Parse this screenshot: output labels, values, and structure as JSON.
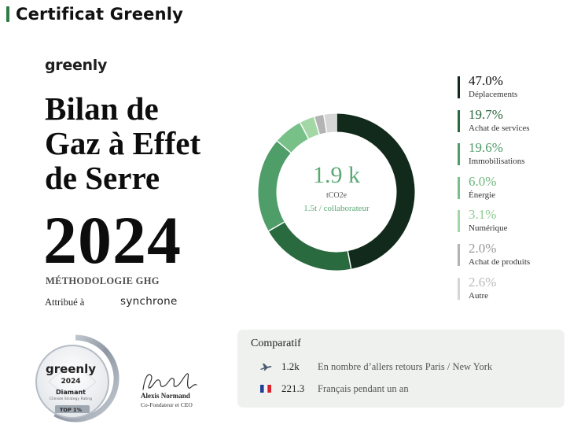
{
  "header": {
    "title": "Certificat Greenly"
  },
  "brand": {
    "logo": "greenly"
  },
  "report": {
    "title_lines": [
      "Bilan de",
      "Gaz à Effet",
      "de Serre"
    ],
    "year": "2024",
    "methodology": "MÉTHODOLOGIE GHG",
    "attributed_label": "Attribué à",
    "company": "synchrone"
  },
  "donut": {
    "value": "1.9 k",
    "unit": "tCO2e",
    "per_employee": "1.5t / collaborateur"
  },
  "chart_data": {
    "type": "pie",
    "variant": "donut",
    "center_label": "1.9 k",
    "center_unit": "tCO2e",
    "center_sub": "1.5t / collaborateur",
    "categories": [
      "Déplacements",
      "Achat de services",
      "Immobilisations",
      "Énergie",
      "Numérique",
      "Achat de produits",
      "Autre"
    ],
    "values": [
      47.0,
      19.7,
      19.6,
      6.0,
      3.1,
      2.0,
      2.6
    ],
    "labels": [
      "47.0%",
      "19.7%",
      "19.6%",
      "6.0%",
      "3.1%",
      "2.0%",
      "2.6%"
    ],
    "colors": [
      "#112a1b",
      "#2a6a3f",
      "#4f9d68",
      "#77c088",
      "#a3d7a6",
      "#b3b3b3",
      "#d6d6d6"
    ],
    "legend_position": "right"
  },
  "legend_text_colors": [
    "#111111",
    "#2a6a3f",
    "#4f9d68",
    "#6eb87e",
    "#8fcf94",
    "#9a9a9a",
    "#bbbbbb"
  ],
  "badge": {
    "logo": "greenly",
    "year": "2024",
    "tier": "Diamant",
    "small_text": "Climate Strategy Rating",
    "top": "TOP 1%"
  },
  "signature": {
    "name": "Alexis Normand",
    "title": "Co-Fondateur et CEO"
  },
  "comparatif": {
    "title": "Comparatif",
    "rows": [
      {
        "icon": "airplane-icon",
        "value": "1.2k",
        "text": "En nombre d’allers retours Paris / New York"
      },
      {
        "icon": "france-flag-icon",
        "value": "221.3",
        "text": "Français pendant un an"
      }
    ]
  }
}
